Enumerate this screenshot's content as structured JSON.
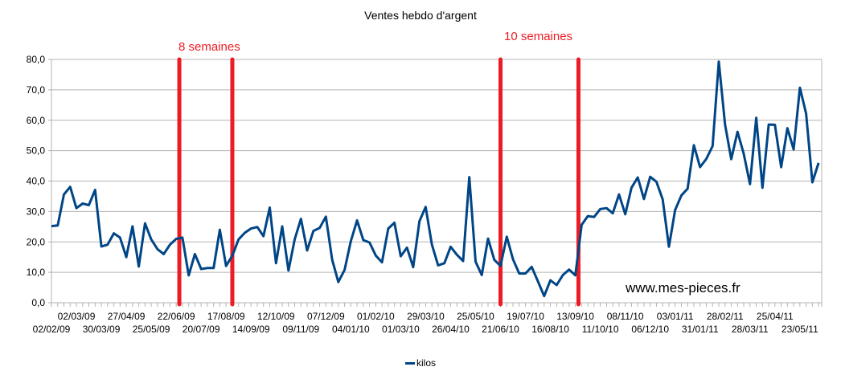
{
  "chart_data": {
    "type": "line",
    "title": "Ventes hebdo d'argent",
    "xlabel": "",
    "ylabel": "",
    "ylim": [
      0,
      80
    ],
    "yticks": [
      "0,0",
      "10,0",
      "20,0",
      "30,0",
      "40,0",
      "50,0",
      "60,0",
      "70,0",
      "80,0"
    ],
    "grid": true,
    "legend_position": "bottom",
    "x_tick_labels_row1": [
      "02/03/09",
      "27/04/09",
      "22/06/09",
      "17/08/09",
      "12/10/09",
      "07/12/09",
      "01/02/10",
      "29/03/10",
      "25/05/10",
      "19/07/10",
      "13/09/10",
      "08/11/10",
      "03/01/11",
      "28/02/11",
      "25/04/11"
    ],
    "x_tick_labels_row2": [
      "02/02/09",
      "30/03/09",
      "25/05/09",
      "20/07/09",
      "14/09/09",
      "09/11/09",
      "04/01/10",
      "01/03/10",
      "26/04/10",
      "21/06/10",
      "16/08/10",
      "11/10/10",
      "06/12/10",
      "31/01/11",
      "28/03/11",
      "23/05/11"
    ],
    "series": [
      {
        "name": "kilos",
        "color": "#004586",
        "values": [
          25.2,
          25.4,
          35.6,
          38.1,
          31.1,
          32.6,
          32.1,
          37.1,
          18.5,
          19.1,
          22.8,
          21.4,
          15.0,
          25.1,
          11.9,
          26.1,
          20.8,
          17.6,
          16.0,
          19.1,
          21.0,
          21.4,
          9.0,
          16.0,
          11.1,
          11.4,
          11.4,
          24.0,
          12.1,
          15.5,
          20.8,
          23.0,
          24.4,
          24.9,
          21.9,
          31.3,
          13.0,
          25.1,
          10.6,
          20.8,
          27.6,
          17.2,
          23.6,
          24.6,
          28.3,
          14.2,
          6.8,
          10.8,
          20.2,
          27.1,
          20.6,
          19.8,
          15.5,
          13.3,
          24.4,
          26.3,
          15.3,
          18.1,
          11.7,
          26.8,
          31.5,
          19.1,
          12.3,
          13.0,
          18.4,
          15.8,
          13.7,
          41.3,
          13.5,
          9.1,
          21.1,
          14.1,
          12.1,
          21.7,
          14.3,
          9.6,
          9.6,
          11.8,
          7.0,
          2.2,
          7.4,
          5.8,
          9.1,
          10.9,
          9.0,
          25.6,
          28.5,
          28.2,
          30.8,
          31.1,
          29.4,
          35.6,
          29.1,
          37.8,
          41.2,
          34.1,
          41.4,
          39.8,
          34.0,
          18.4,
          30.5,
          35.3,
          37.5,
          51.8,
          44.6,
          47.3,
          51.5,
          79.3,
          58.6,
          47.2,
          56.2,
          49.0,
          39.0,
          60.8,
          37.8,
          58.6,
          58.5,
          44.6,
          57.4,
          50.4,
          70.7,
          62.2,
          39.6,
          46.0
        ]
      }
    ],
    "annotations": [
      {
        "type": "vline",
        "label": "8 semaines",
        "x_date_approx": "22/06/09",
        "color": "#ed1c24"
      },
      {
        "type": "vline",
        "label": "",
        "x_date_approx": "17/08/09",
        "color": "#ed1c24"
      },
      {
        "type": "vline",
        "label": "10 semaines",
        "x_date_approx": "28/06/10",
        "color": "#ed1c24"
      },
      {
        "type": "vline",
        "label": "",
        "x_date_approx": "06/09/10",
        "color": "#ed1c24"
      },
      {
        "type": "text",
        "label": "www.mes-pieces.fr"
      }
    ]
  },
  "labels": {
    "title": "Ventes hebdo d'argent",
    "annotation_8": "8 semaines",
    "annotation_10": "10 semaines",
    "watermark": "www.mes-pieces.fr",
    "legend": "kilos"
  },
  "colors": {
    "line": "#004586",
    "marker_lines": "#ed1c24",
    "grid": "#b3b3b3"
  },
  "marker_indices": [
    20.5,
    29,
    72,
    84.5
  ]
}
